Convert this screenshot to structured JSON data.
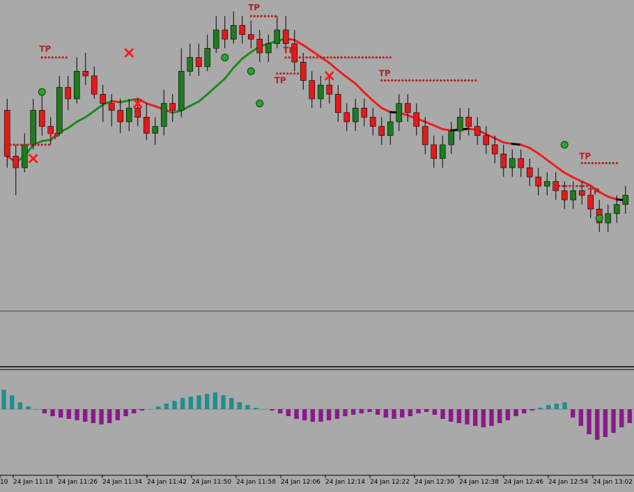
{
  "colors": {
    "background": "#a9a9a9",
    "bull_candle": "#1e7b1e",
    "bear_candle": "#e31a1a",
    "wick": "#000000",
    "ma_black": "#000000",
    "ma_green": "#1a8a1a",
    "ma_red": "#ee1c1c",
    "tp_dots": "#b22222",
    "hist_pos": "#1f8f8f",
    "hist_neg": "#8b1a8b",
    "separator": "#2f4f4f"
  },
  "chart_data": {
    "type": "candlestick",
    "panels": [
      "price",
      "empty",
      "histogram"
    ],
    "x_labels": [
      "10",
      "24 Jan 11:18",
      "24 Jan 11:26",
      "24 Jan 11:34",
      "24 Jan 11:42",
      "24 Jan 11:50",
      "24 Jan 11:58",
      "24 Jan 12:06",
      "24 Jan 12:14",
      "24 Jan 12:22",
      "24 Jan 12:30",
      "24 Jan 12:38",
      "24 Jan 12:46",
      "24 Jan 12:54",
      "24 Jan 13:02"
    ],
    "candles_ohlc_relative": [
      [
        55,
        35,
        60,
        30
      ],
      [
        35,
        30,
        40,
        18
      ],
      [
        30,
        40,
        45,
        28
      ],
      [
        40,
        55,
        60,
        38
      ],
      [
        55,
        48,
        62,
        44
      ],
      [
        48,
        45,
        52,
        40
      ],
      [
        45,
        65,
        70,
        44
      ],
      [
        65,
        60,
        70,
        55
      ],
      [
        60,
        72,
        78,
        58
      ],
      [
        72,
        70,
        80,
        66
      ],
      [
        70,
        62,
        74,
        60
      ],
      [
        62,
        58,
        66,
        50
      ],
      [
        58,
        55,
        62,
        48
      ],
      [
        55,
        50,
        60,
        45
      ],
      [
        50,
        56,
        60,
        46
      ],
      [
        56,
        52,
        60,
        48
      ],
      [
        52,
        45,
        58,
        42
      ],
      [
        45,
        48,
        52,
        40
      ],
      [
        48,
        58,
        64,
        44
      ],
      [
        58,
        55,
        62,
        50
      ],
      [
        55,
        72,
        82,
        52
      ],
      [
        72,
        78,
        84,
        70
      ],
      [
        78,
        74,
        84,
        70
      ],
      [
        74,
        82,
        88,
        72
      ],
      [
        82,
        90,
        96,
        80
      ],
      [
        90,
        86,
        96,
        82
      ],
      [
        86,
        92,
        98,
        84
      ],
      [
        92,
        88,
        96,
        84
      ],
      [
        88,
        86,
        94,
        82
      ],
      [
        86,
        80,
        90,
        76
      ],
      [
        80,
        84,
        88,
        76
      ],
      [
        84,
        90,
        96,
        82
      ],
      [
        90,
        84,
        96,
        80
      ],
      [
        84,
        76,
        90,
        72
      ],
      [
        76,
        68,
        80,
        64
      ],
      [
        68,
        60,
        72,
        56
      ],
      [
        60,
        66,
        70,
        56
      ],
      [
        66,
        62,
        70,
        58
      ],
      [
        62,
        54,
        66,
        50
      ],
      [
        54,
        50,
        58,
        46
      ],
      [
        50,
        56,
        60,
        46
      ],
      [
        56,
        52,
        60,
        48
      ],
      [
        52,
        48,
        56,
        44
      ],
      [
        48,
        44,
        52,
        40
      ],
      [
        44,
        50,
        54,
        40
      ],
      [
        50,
        58,
        62,
        46
      ],
      [
        58,
        54,
        62,
        50
      ],
      [
        54,
        48,
        58,
        44
      ],
      [
        48,
        40,
        52,
        36
      ],
      [
        40,
        34,
        44,
        30
      ],
      [
        34,
        40,
        44,
        30
      ],
      [
        40,
        46,
        50,
        36
      ],
      [
        46,
        52,
        56,
        42
      ],
      [
        52,
        48,
        56,
        44
      ],
      [
        48,
        44,
        52,
        40
      ],
      [
        44,
        40,
        48,
        36
      ],
      [
        40,
        36,
        44,
        32
      ],
      [
        36,
        30,
        40,
        26
      ],
      [
        30,
        34,
        38,
        26
      ],
      [
        34,
        30,
        38,
        26
      ],
      [
        30,
        26,
        34,
        22
      ],
      [
        26,
        22,
        30,
        18
      ],
      [
        22,
        24,
        28,
        18
      ],
      [
        24,
        20,
        28,
        16
      ],
      [
        20,
        16,
        24,
        12
      ],
      [
        16,
        20,
        24,
        12
      ],
      [
        20,
        18,
        24,
        14
      ],
      [
        18,
        12,
        22,
        8
      ],
      [
        12,
        6,
        16,
        2
      ],
      [
        6,
        10,
        14,
        2
      ],
      [
        10,
        14,
        18,
        6
      ],
      [
        14,
        18,
        22,
        10
      ]
    ],
    "histogram_relative": [
      28,
      20,
      10,
      4,
      0,
      -6,
      -10,
      -12,
      -14,
      -16,
      -18,
      -20,
      -22,
      -20,
      -16,
      -10,
      -6,
      -2,
      0,
      4,
      8,
      12,
      16,
      18,
      20,
      22,
      24,
      20,
      16,
      10,
      6,
      2,
      0,
      -2,
      -6,
      -10,
      -14,
      -16,
      -18,
      -18,
      -16,
      -14,
      -10,
      -8,
      -6,
      -4,
      -8,
      -12,
      -14,
      -12,
      -10,
      -6,
      -4,
      -8,
      -14,
      -18,
      -20,
      -22,
      -24,
      -26,
      -24,
      -20,
      -16,
      -10,
      -6,
      -2,
      2,
      6,
      8,
      10,
      -12,
      -24,
      -36,
      -44,
      -40,
      -34,
      -26,
      -20
    ],
    "markers": [
      {
        "type": "text",
        "label": "TP"
      },
      {
        "type": "text",
        "label": "TP"
      },
      {
        "type": "text",
        "label": "TP"
      },
      {
        "type": "text",
        "label": "TP"
      },
      {
        "type": "text",
        "label": "TP"
      },
      {
        "type": "text",
        "label": "TP"
      },
      {
        "type": "text",
        "label": "TP"
      },
      {
        "type": "text",
        "label": "TP"
      }
    ]
  }
}
